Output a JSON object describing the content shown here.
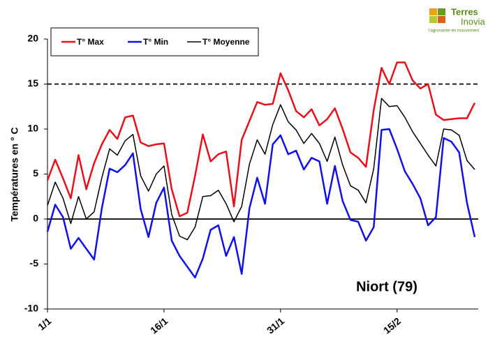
{
  "logo": {
    "line1": "Terres",
    "line2": "Inovia",
    "tagline": "l'agronomie en mouvement"
  },
  "chart_data": {
    "type": "line",
    "y_label": "Températures en ° C",
    "annotation": "Niort (79)",
    "categories": [
      "1/1",
      null,
      null,
      null,
      null,
      null,
      null,
      null,
      null,
      null,
      null,
      null,
      null,
      null,
      null,
      "16/1",
      null,
      null,
      null,
      null,
      null,
      null,
      null,
      null,
      null,
      null,
      null,
      null,
      null,
      null,
      "31/1",
      null,
      null,
      null,
      null,
      null,
      null,
      null,
      null,
      null,
      null,
      null,
      null,
      null,
      null,
      "15/2",
      null,
      null,
      null,
      null,
      null,
      null,
      null,
      null,
      null,
      null
    ],
    "series": [
      {
        "name": "T° Max",
        "color": "#e8101a",
        "values": [
          4.3,
          6.6,
          4.5,
          2.3,
          7.1,
          3.3,
          6.2,
          8.3,
          9.9,
          8.9,
          11.3,
          11.5,
          8.5,
          8.1,
          8.3,
          8.4,
          3.3,
          0.3,
          0.7,
          4.8,
          9.4,
          6.4,
          7.2,
          7.5,
          1.4,
          8.8,
          10.9,
          13.0,
          12.7,
          12.8,
          16.2,
          14.3,
          12.0,
          11.3,
          12.2,
          10.4,
          11.1,
          12.3,
          10.0,
          7.4,
          6.8,
          5.8,
          12.1,
          16.8,
          15.0,
          17.4,
          17.4,
          15.4,
          14.5,
          15.0,
          11.6,
          11.0,
          11.1,
          11.2,
          11.2,
          12.9
        ]
      },
      {
        "name": "T° Min",
        "color": "#1010e8",
        "values": [
          -1.4,
          1.6,
          0.2,
          -3.3,
          -2.1,
          -3.3,
          -4.5,
          1.2,
          5.6,
          5.2,
          6.0,
          7.3,
          1.1,
          -2.0,
          1.8,
          3.5,
          -2.4,
          -4.1,
          -5.3,
          -6.5,
          -4.4,
          -1.2,
          -0.7,
          -4.1,
          -2.0,
          -6.1,
          1.2,
          4.6,
          1.7,
          8.3,
          9.3,
          7.2,
          7.6,
          5.5,
          6.8,
          6.4,
          1.7,
          5.9,
          2.0,
          -0.1,
          -0.3,
          -2.4,
          -0.9,
          9.9,
          10.0,
          7.8,
          5.3,
          3.9,
          2.3,
          -0.7,
          0.2,
          9.0,
          8.6,
          7.4,
          1.8,
          -2.0
        ]
      },
      {
        "name": "T° Moyenne",
        "color": "#000000",
        "values": [
          1.5,
          4.1,
          2.3,
          -0.5,
          2.5,
          0.0,
          0.8,
          4.6,
          7.8,
          7.1,
          8.7,
          9.4,
          4.8,
          3.1,
          5.0,
          5.9,
          0.5,
          -1.9,
          -2.3,
          -0.9,
          2.5,
          2.6,
          3.2,
          1.7,
          -0.3,
          1.4,
          6.1,
          8.8,
          7.2,
          10.5,
          12.7,
          10.8,
          9.9,
          8.4,
          9.5,
          8.4,
          6.4,
          9.1,
          6.0,
          3.7,
          3.2,
          1.8,
          5.6,
          13.4,
          12.5,
          12.6,
          11.3,
          9.7,
          8.4,
          7.1,
          5.9,
          10.0,
          9.9,
          9.3,
          6.5,
          5.5
        ]
      }
    ],
    "ylim": [
      -10,
      20
    ],
    "yticks": [
      -10,
      -5,
      0,
      5,
      10,
      15,
      20
    ],
    "reference_lines": [
      {
        "value": 15,
        "style": "dashed"
      },
      {
        "value": 0,
        "style": "solid"
      }
    ],
    "legend": "top-left"
  }
}
